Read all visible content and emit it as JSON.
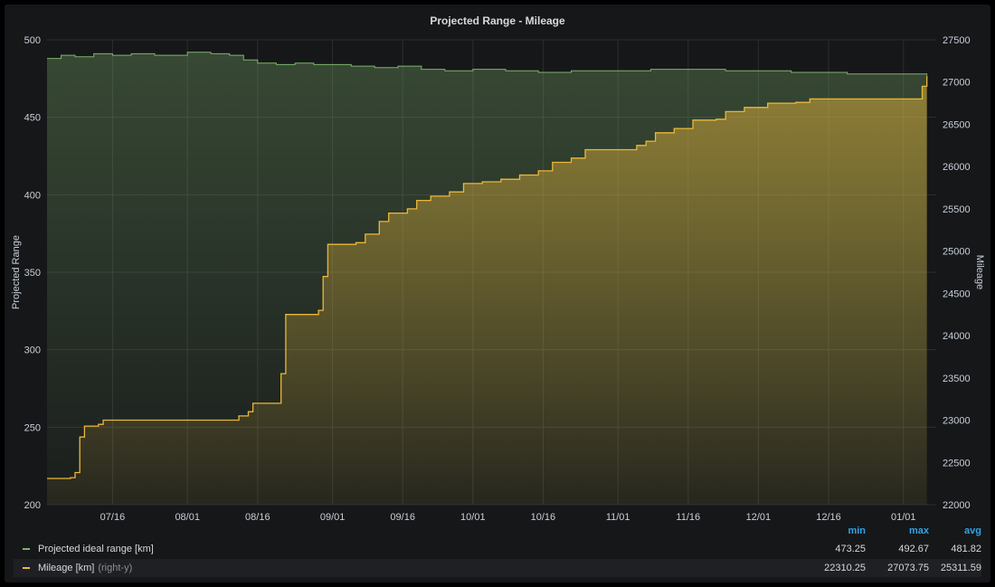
{
  "panel": {
    "title": "Projected Range - Mileage"
  },
  "chart_data": {
    "type": "area",
    "title": "Projected Range - Mileage",
    "y_left": {
      "label": "Projected Range",
      "range": [
        200,
        500
      ],
      "ticks": [
        200,
        250,
        300,
        350,
        400,
        450,
        500
      ]
    },
    "y_right": {
      "label": "Mileage",
      "range": [
        22000,
        27500
      ],
      "ticks": [
        22000,
        22500,
        23000,
        23500,
        24000,
        24500,
        25000,
        25500,
        26000,
        26500,
        27000,
        27500
      ]
    },
    "x_axis": {
      "start": "2020-07-02",
      "end": "2021-01-08",
      "ticks": [
        "07/16",
        "08/01",
        "08/16",
        "09/01",
        "09/16",
        "10/01",
        "10/16",
        "11/01",
        "11/16",
        "12/01",
        "12/16",
        "01/01"
      ]
    },
    "grid": true,
    "legend_placement": "bottom",
    "series": [
      {
        "name": "Projected ideal range [km]",
        "axis": "left",
        "color": "#7eb26d",
        "points": [
          [
            "2020-07-02",
            488
          ],
          [
            "2020-07-05",
            490
          ],
          [
            "2020-07-08",
            489
          ],
          [
            "2020-07-12",
            491
          ],
          [
            "2020-07-16",
            490
          ],
          [
            "2020-07-20",
            491
          ],
          [
            "2020-07-25",
            490
          ],
          [
            "2020-08-01",
            492
          ],
          [
            "2020-08-06",
            491
          ],
          [
            "2020-08-10",
            490
          ],
          [
            "2020-08-13",
            487
          ],
          [
            "2020-08-16",
            485
          ],
          [
            "2020-08-20",
            484
          ],
          [
            "2020-08-24",
            485
          ],
          [
            "2020-08-28",
            484
          ],
          [
            "2020-09-01",
            484
          ],
          [
            "2020-09-05",
            483
          ],
          [
            "2020-09-10",
            482
          ],
          [
            "2020-09-15",
            483
          ],
          [
            "2020-09-20",
            481
          ],
          [
            "2020-09-25",
            480
          ],
          [
            "2020-10-01",
            481
          ],
          [
            "2020-10-08",
            480
          ],
          [
            "2020-10-15",
            479
          ],
          [
            "2020-10-22",
            480
          ],
          [
            "2020-11-01",
            480
          ],
          [
            "2020-11-08",
            481
          ],
          [
            "2020-11-16",
            481
          ],
          [
            "2020-11-24",
            480
          ],
          [
            "2020-12-01",
            480
          ],
          [
            "2020-12-08",
            479
          ],
          [
            "2020-12-14",
            479
          ],
          [
            "2020-12-20",
            478
          ],
          [
            "2020-12-26",
            478
          ],
          [
            "2021-01-01",
            478
          ],
          [
            "2021-01-06",
            477
          ]
        ]
      },
      {
        "name": "Mileage [km]",
        "axis": "right",
        "note": "(right-y)",
        "color": "#eab839",
        "points": [
          [
            "2020-07-02",
            22310
          ],
          [
            "2020-07-07",
            22320
          ],
          [
            "2020-07-08",
            22380
          ],
          [
            "2020-07-09",
            22800
          ],
          [
            "2020-07-10",
            22930
          ],
          [
            "2020-07-13",
            22950
          ],
          [
            "2020-07-14",
            23000
          ],
          [
            "2020-08-10",
            23000
          ],
          [
            "2020-08-12",
            23050
          ],
          [
            "2020-08-14",
            23100
          ],
          [
            "2020-08-15",
            23200
          ],
          [
            "2020-08-20",
            23200
          ],
          [
            "2020-08-21",
            23550
          ],
          [
            "2020-08-22",
            24250
          ],
          [
            "2020-08-29",
            24300
          ],
          [
            "2020-08-30",
            24700
          ],
          [
            "2020-08-31",
            25080
          ],
          [
            "2020-09-06",
            25100
          ],
          [
            "2020-09-08",
            25200
          ],
          [
            "2020-09-11",
            25350
          ],
          [
            "2020-09-13",
            25450
          ],
          [
            "2020-09-17",
            25500
          ],
          [
            "2020-09-19",
            25600
          ],
          [
            "2020-09-22",
            25650
          ],
          [
            "2020-09-26",
            25700
          ],
          [
            "2020-09-29",
            25800
          ],
          [
            "2020-10-03",
            25820
          ],
          [
            "2020-10-07",
            25850
          ],
          [
            "2020-10-11",
            25900
          ],
          [
            "2020-10-15",
            25950
          ],
          [
            "2020-10-18",
            26050
          ],
          [
            "2020-10-22",
            26100
          ],
          [
            "2020-10-25",
            26200
          ],
          [
            "2020-11-02",
            26200
          ],
          [
            "2020-11-05",
            26250
          ],
          [
            "2020-11-07",
            26300
          ],
          [
            "2020-11-09",
            26400
          ],
          [
            "2020-11-13",
            26450
          ],
          [
            "2020-11-17",
            26550
          ],
          [
            "2020-11-22",
            26560
          ],
          [
            "2020-11-24",
            26650
          ],
          [
            "2020-11-28",
            26700
          ],
          [
            "2020-12-03",
            26750
          ],
          [
            "2020-12-09",
            26760
          ],
          [
            "2020-12-12",
            26800
          ],
          [
            "2021-01-04",
            26800
          ],
          [
            "2021-01-05",
            26950
          ],
          [
            "2021-01-06",
            27073
          ]
        ]
      }
    ]
  },
  "legend": {
    "columns": [
      "min",
      "max",
      "avg"
    ],
    "rows": [
      {
        "name": "Projected ideal range [km]",
        "note": "",
        "color": "#7eb26d",
        "min": "473.25",
        "max": "492.67",
        "avg": "481.82"
      },
      {
        "name": "Mileage [km]",
        "note": "(right-y)",
        "color": "#eab839",
        "min": "22310.25",
        "max": "27073.75",
        "avg": "25311.59"
      }
    ]
  }
}
